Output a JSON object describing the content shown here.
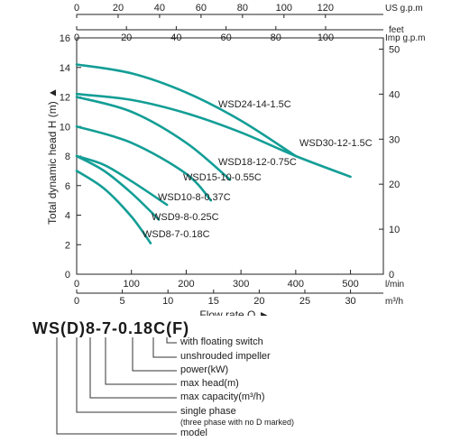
{
  "chart_data": {
    "type": "line",
    "xlabel": "Flow rate Q",
    "ylabel": "Total dynamic head H (m)",
    "x_primary_unit": "l/min",
    "x_primary_ticks": [
      0,
      100,
      200,
      300,
      400,
      500
    ],
    "x_secondary_unit": "m³/h",
    "x_secondary_ticks": [
      0,
      5,
      10,
      15,
      20,
      25,
      30
    ],
    "x_top1_unit": "US g.p.m",
    "x_top1_ticks": [
      0,
      20,
      40,
      60,
      80,
      100,
      120
    ],
    "x_top2_unit": "Imp g.p.m",
    "x_top2_ticks": [
      0,
      20,
      40,
      60,
      80,
      100
    ],
    "y_left_unit": "m",
    "y_left_ticks": [
      0,
      2,
      4,
      6,
      8,
      10,
      12,
      14,
      16
    ],
    "y_right_unit": "feet",
    "y_right_ticks": [
      0,
      10,
      20,
      30,
      40,
      50
    ],
    "xlim": [
      0,
      560
    ],
    "ylim": [
      0,
      16
    ],
    "grid": false,
    "line_color": "#139e96",
    "series": [
      {
        "name": "WSD30-12-1.5C",
        "x": [
          0,
          100,
          200,
          300,
          400,
          500
        ],
        "y": [
          12.2,
          11.8,
          10.9,
          9.6,
          8.0,
          6.6
        ]
      },
      {
        "name": "WSD24-14-1.5C",
        "x": [
          0,
          100,
          200,
          300,
          400
        ],
        "y": [
          14.2,
          13.6,
          12.3,
          10.4,
          8.0
        ]
      },
      {
        "name": "WSD18-12-0.75C",
        "x": [
          0,
          100,
          200,
          280
        ],
        "y": [
          12.0,
          11.0,
          8.9,
          6.4
        ]
      },
      {
        "name": "WSD15-10-0.55C",
        "x": [
          0,
          100,
          200,
          245
        ],
        "y": [
          10.0,
          8.9,
          6.8,
          5.0
        ]
      },
      {
        "name": "WSD10-8-0.37C",
        "x": [
          0,
          50,
          100,
          165
        ],
        "y": [
          8.0,
          7.4,
          6.3,
          4.7
        ]
      },
      {
        "name": "WSD9-8-0.25C",
        "x": [
          0,
          50,
          100,
          150
        ],
        "y": [
          8.0,
          7.0,
          5.5,
          3.7
        ]
      },
      {
        "name": "WSD8-7-0.18C",
        "x": [
          0,
          50,
          100,
          135
        ],
        "y": [
          7.0,
          5.8,
          3.9,
          2.1
        ]
      }
    ]
  },
  "model_code": {
    "text": [
      "WS",
      "(D)",
      "8",
      "-",
      "7",
      "-",
      "0.18C",
      "(F)"
    ]
  },
  "model_legend": [
    {
      "label": "with floating switch",
      "note": ""
    },
    {
      "label": "unshrouded impeller",
      "note": ""
    },
    {
      "label": "power(kW)",
      "note": ""
    },
    {
      "label": "max head(m)",
      "note": ""
    },
    {
      "label": "max capacity(m³/h)",
      "note": ""
    },
    {
      "label": "single phase",
      "note": "(three phase with no D marked)"
    },
    {
      "label": "model",
      "note": ""
    }
  ]
}
